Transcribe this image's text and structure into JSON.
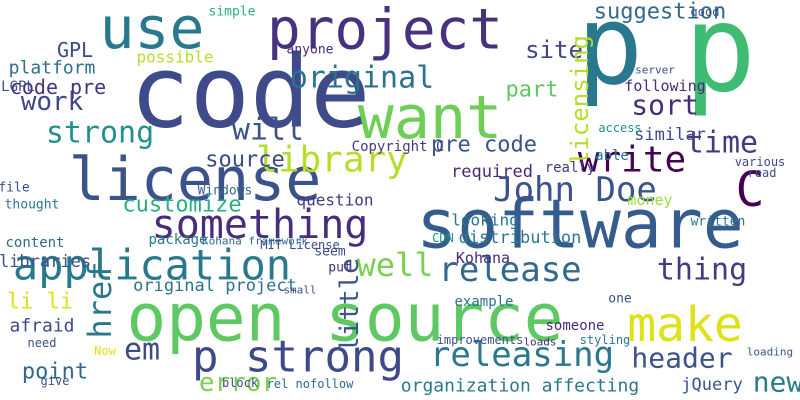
{
  "word_cloud": {
    "words": [
      {
        "text": "open source",
        "color": "#5ec962"
      },
      {
        "text": "code",
        "color": "#3e4a89"
      },
      {
        "text": "project",
        "color": "#46327e"
      },
      {
        "text": "software",
        "color": "#365c8d"
      },
      {
        "text": "p",
        "color": "#2a788e"
      },
      {
        "text": "p",
        "color": "#3fbc73"
      },
      {
        "text": "want",
        "color": "#6ece58"
      },
      {
        "text": "use",
        "color": "#2a788e"
      },
      {
        "text": "license",
        "color": "#3b528b"
      },
      {
        "text": "application",
        "color": "#29798e"
      },
      {
        "text": "something",
        "color": "#472d7b"
      },
      {
        "text": "library",
        "color": "#b5de2b"
      },
      {
        "text": "original",
        "color": "#2c728e"
      },
      {
        "text": "strong",
        "color": "#21918c"
      },
      {
        "text": "will",
        "color": "#3b528b"
      },
      {
        "text": "work",
        "color": "#3e4989"
      },
      {
        "text": "write",
        "color": "#440154"
      },
      {
        "text": "time",
        "color": "#443983"
      },
      {
        "text": "sort",
        "color": "#472c7a"
      },
      {
        "text": "John Doe",
        "color": "#3b528b"
      },
      {
        "text": "C",
        "color": "#440154"
      },
      {
        "text": "make",
        "color": "#dde318"
      },
      {
        "text": "header",
        "color": "#3b528b"
      },
      {
        "text": "releasing",
        "color": "#2a788e"
      },
      {
        "text": "release",
        "color": "#31688e"
      },
      {
        "text": "thing",
        "color": "#443a83"
      },
      {
        "text": "p strong",
        "color": "#3e4989"
      },
      {
        "text": "error",
        "color": "#7ad151"
      },
      {
        "text": "em",
        "color": "#3e4a89"
      },
      {
        "text": "href",
        "color": "#2a788e"
      },
      {
        "text": "well",
        "color": "#7ad151"
      },
      {
        "text": "little",
        "color": "#3b528b"
      },
      {
        "text": "new",
        "color": "#287c8e"
      },
      {
        "text": "suggestion",
        "color": "#31688e"
      },
      {
        "text": "site",
        "color": "#414487"
      },
      {
        "text": "part",
        "color": "#5ec962"
      },
      {
        "text": "customize",
        "color": "#29af7f"
      },
      {
        "text": "GPL",
        "color": "#3e4989"
      },
      {
        "text": "platform",
        "color": "#2e6e8e"
      },
      {
        "text": "code pre",
        "color": "#46327e"
      },
      {
        "text": "LGPL",
        "color": "#3b528b"
      },
      {
        "text": "pre code",
        "color": "#3b528b"
      },
      {
        "text": "required",
        "color": "#482878"
      },
      {
        "text": "source",
        "color": "#3e4989"
      },
      {
        "text": "Copyright C",
        "color": "#443983"
      },
      {
        "text": "point",
        "color": "#31688e"
      },
      {
        "text": "organization affecting",
        "color": "#2a788e"
      },
      {
        "text": "jQuery",
        "color": "#3b528b"
      },
      {
        "text": "li li",
        "color": "#dde318"
      },
      {
        "text": "afraid",
        "color": "#3e4989"
      },
      {
        "text": "original project",
        "color": "#2c728e"
      },
      {
        "text": "question",
        "color": "#443983"
      },
      {
        "text": "distribution",
        "color": "#2a788e"
      },
      {
        "text": "licensing",
        "color": "#b5de2b"
      },
      {
        "text": "similar",
        "color": "#3e4989"
      },
      {
        "text": "following",
        "color": "#472d7b"
      },
      {
        "text": "money",
        "color": "#9fda3a"
      },
      {
        "text": "looking",
        "color": "#2a788e"
      },
      {
        "text": "libraries",
        "color": "#3b528b"
      },
      {
        "text": "content",
        "color": "#31688e"
      },
      {
        "text": "thought",
        "color": "#2a788e"
      },
      {
        "text": "file",
        "color": "#3e4989"
      },
      {
        "text": "Kohana",
        "color": "#482878"
      },
      {
        "text": "example",
        "color": "#2c728e"
      },
      {
        "text": "someone",
        "color": "#472d7b"
      },
      {
        "text": "one",
        "color": "#3b528b"
      },
      {
        "text": "possible",
        "color": "#b5de2b"
      },
      {
        "text": "Windows",
        "color": "#31688e"
      },
      {
        "text": "MIT License",
        "color": "#3e4989"
      },
      {
        "text": "CDN",
        "color": "#21918c"
      },
      {
        "text": "Now",
        "color": "#dde318"
      },
      {
        "text": "need",
        "color": "#3b528b"
      },
      {
        "text": "really",
        "color": "#443983"
      },
      {
        "text": "able",
        "color": "#2a788e"
      },
      {
        "text": "access",
        "color": "#21918c"
      },
      {
        "text": "block",
        "color": "#3e4989"
      },
      {
        "text": "rel nofollow",
        "color": "#31688e"
      },
      {
        "text": "improvements",
        "color": "#3b528b"
      },
      {
        "text": "loads",
        "color": "#472d7b"
      },
      {
        "text": "styling",
        "color": "#2a788e"
      },
      {
        "text": "various",
        "color": "#3e4989"
      },
      {
        "text": "read",
        "color": "#3b528b"
      },
      {
        "text": "package",
        "color": "#2a788e"
      },
      {
        "text": "seem",
        "color": "#3e4989"
      },
      {
        "text": "put",
        "color": "#472d7b"
      },
      {
        "text": "small",
        "color": "#3b528b"
      },
      {
        "text": "Kohana framework",
        "color": "#31688e"
      },
      {
        "text": "give",
        "color": "#3b528b"
      },
      {
        "text": "anyone",
        "color": "#482878"
      },
      {
        "text": "simple",
        "color": "#29af7f"
      },
      {
        "text": "good",
        "color": "#3b528b"
      },
      {
        "text": "written",
        "color": "#2a788e"
      },
      {
        "text": "server",
        "color": "#3e4989"
      },
      {
        "text": "loading",
        "color": "#3b528b"
      }
    ]
  }
}
